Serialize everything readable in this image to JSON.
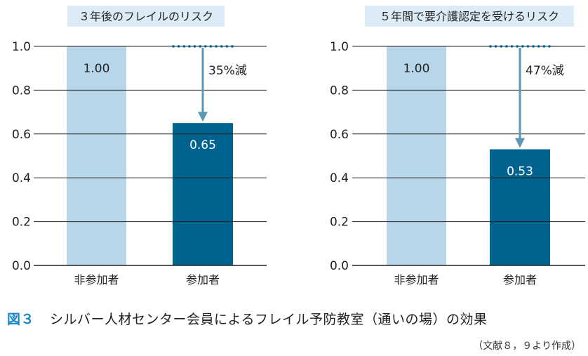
{
  "colors": {
    "non_participant": "#b8d6e9",
    "participant": "#00628e",
    "arrow": "#5b98b5",
    "title_bg": "#dcecf6",
    "caption_accent": "#1a86c8",
    "gridline": "#222222"
  },
  "caption": {
    "figure_number": "図３",
    "text": "シルバー人材センター会員によるフレイル予防教室（通いの場）の効果"
  },
  "source": "（文献８，９より作成）",
  "chart_data": [
    {
      "type": "bar",
      "title": "３年後のフレイルのリスク",
      "categories": [
        "非参加者",
        "参加者"
      ],
      "values": [
        1.0,
        0.65
      ],
      "value_labels": [
        "1.00",
        "0.65"
      ],
      "yticks": [
        "0.0",
        "0.2",
        "0.4",
        "0.6",
        "0.8",
        "1.0"
      ],
      "ylim": [
        0,
        1
      ],
      "grid": true,
      "annotation": "35%減"
    },
    {
      "type": "bar",
      "title": "５年間で要介護認定を受けるリスク",
      "categories": [
        "非参加者",
        "参加者"
      ],
      "values": [
        1.0,
        0.53
      ],
      "value_labels": [
        "1.00",
        "0.53"
      ],
      "yticks": [
        "0.0",
        "0.2",
        "0.4",
        "0.6",
        "0.8",
        "1.0"
      ],
      "ylim": [
        0,
        1
      ],
      "grid": true,
      "annotation": "47%減"
    }
  ]
}
